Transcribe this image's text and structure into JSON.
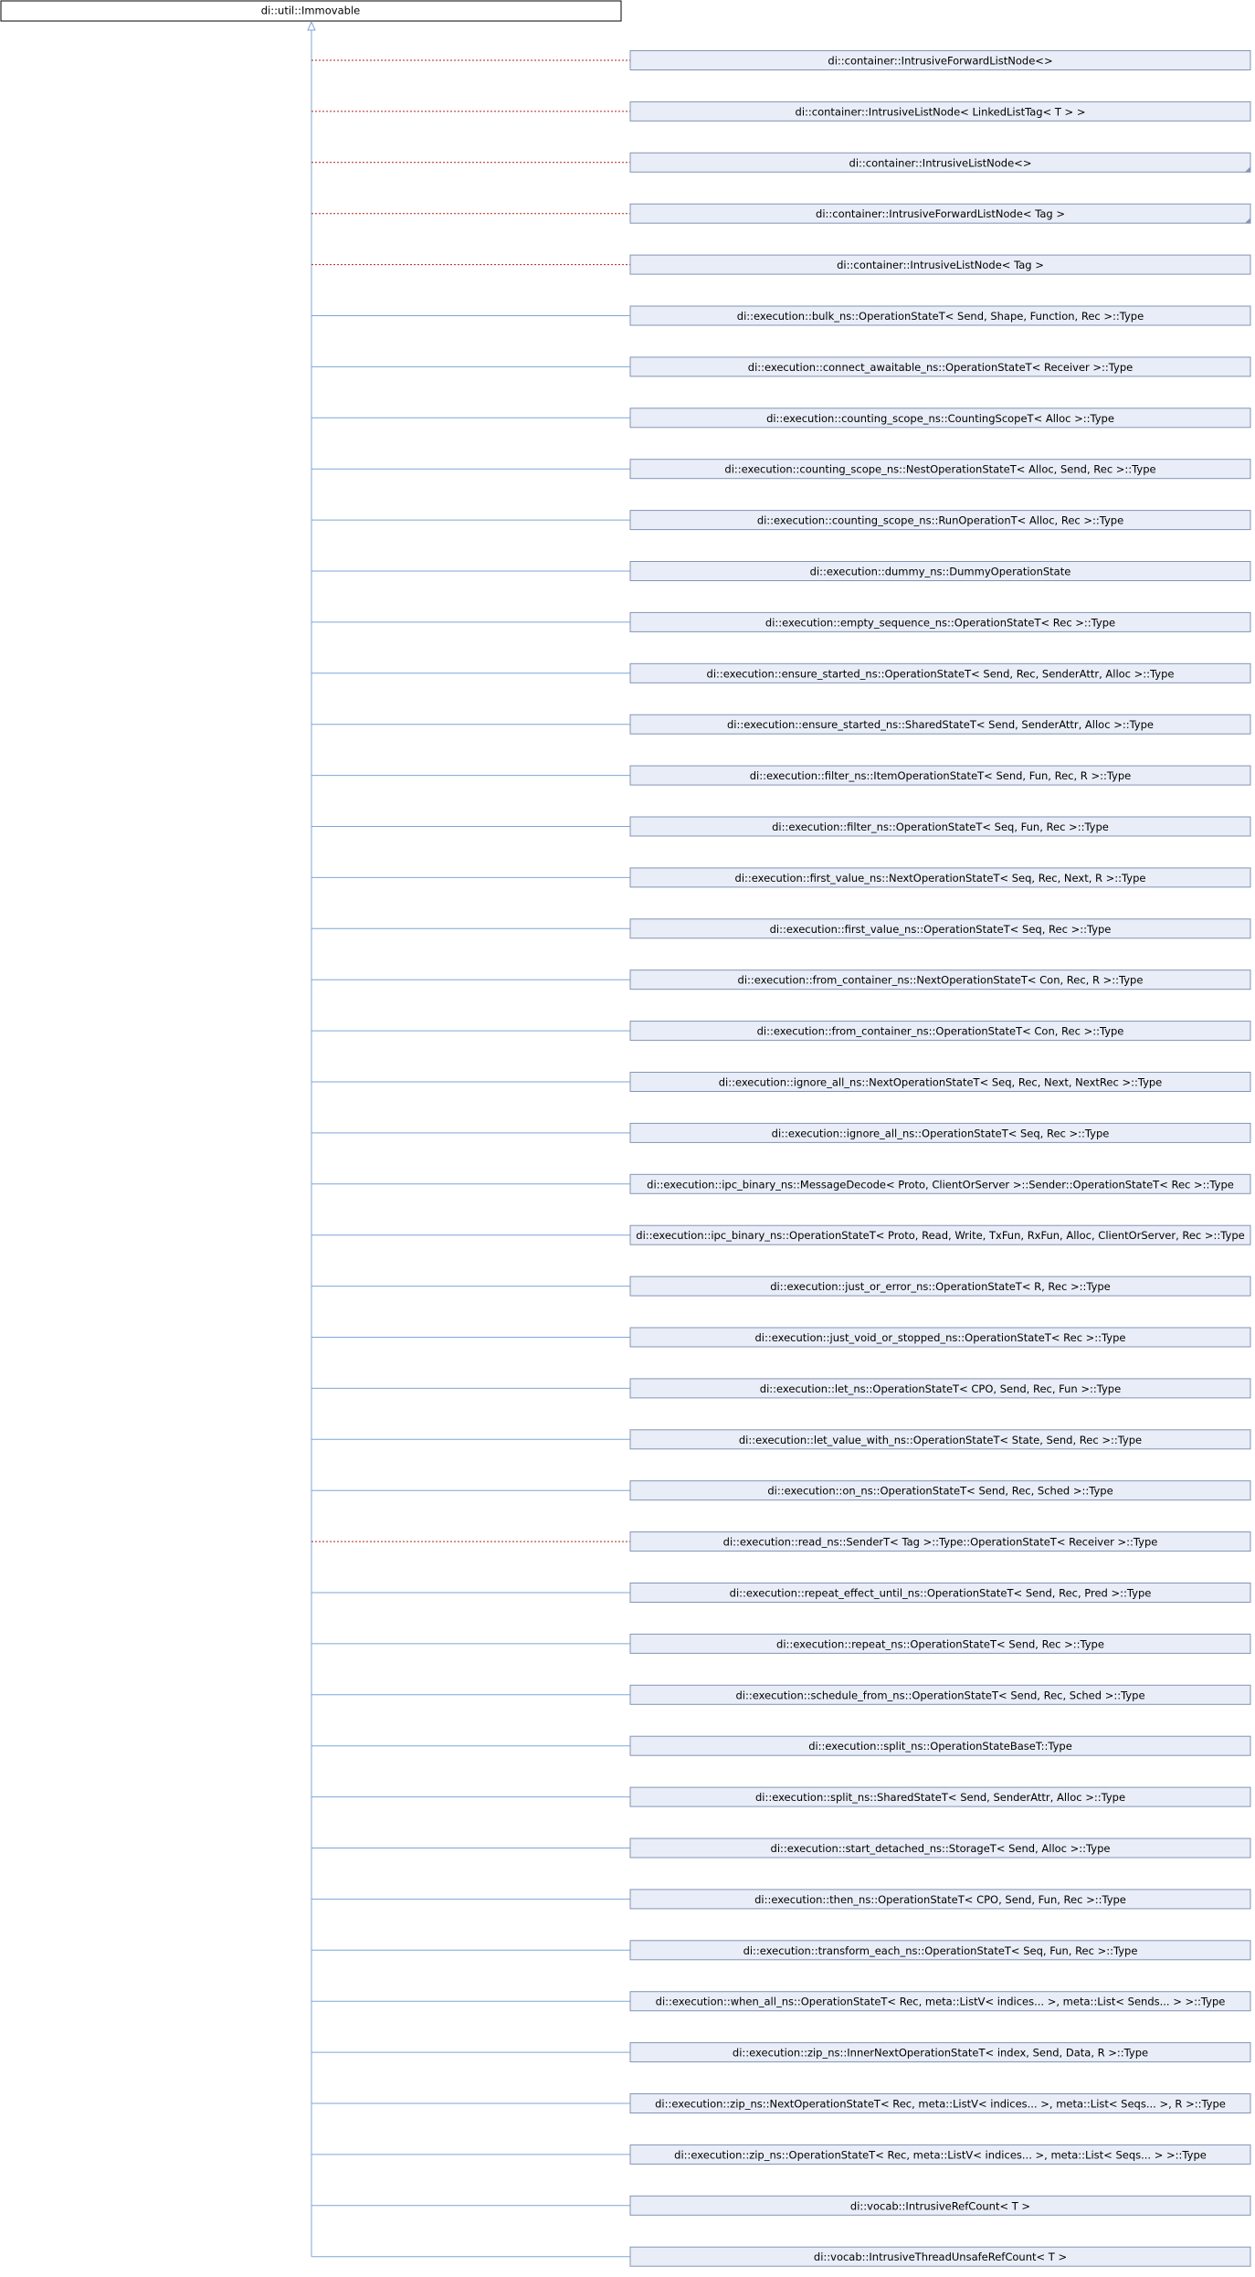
{
  "root": {
    "label": "di::util::Immovable"
  },
  "nodes": [
    {
      "label": "di::container::IntrusiveForwardListNode<>",
      "edge_style": "dotted"
    },
    {
      "label": "di::container::IntrusiveListNode< LinkedListTag< T > >",
      "edge_style": "dotted"
    },
    {
      "label": "di::container::IntrusiveListNode<>",
      "edge_style": "dotted",
      "truncated": true
    },
    {
      "label": "di::container::IntrusiveForwardListNode< Tag >",
      "edge_style": "dotted",
      "truncated": true
    },
    {
      "label": "di::container::IntrusiveListNode< Tag >",
      "edge_style": "dotted"
    },
    {
      "label": "di::execution::bulk_ns::OperationStateT< Send, Shape, Function, Rec >::Type",
      "edge_style": "solid"
    },
    {
      "label": "di::execution::connect_awaitable_ns::OperationStateT< Receiver >::Type",
      "edge_style": "solid"
    },
    {
      "label": "di::execution::counting_scope_ns::CountingScopeT< Alloc >::Type",
      "edge_style": "solid"
    },
    {
      "label": "di::execution::counting_scope_ns::NestOperationStateT< Alloc, Send, Rec >::Type",
      "edge_style": "solid"
    },
    {
      "label": "di::execution::counting_scope_ns::RunOperationT< Alloc, Rec >::Type",
      "edge_style": "solid"
    },
    {
      "label": "di::execution::dummy_ns::DummyOperationState",
      "edge_style": "solid"
    },
    {
      "label": "di::execution::empty_sequence_ns::OperationStateT< Rec >::Type",
      "edge_style": "solid"
    },
    {
      "label": "di::execution::ensure_started_ns::OperationStateT< Send, Rec, SenderAttr, Alloc >::Type",
      "edge_style": "solid"
    },
    {
      "label": "di::execution::ensure_started_ns::SharedStateT< Send, SenderAttr, Alloc >::Type",
      "edge_style": "solid"
    },
    {
      "label": "di::execution::filter_ns::ItemOperationStateT< Send, Fun, Rec, R >::Type",
      "edge_style": "solid"
    },
    {
      "label": "di::execution::filter_ns::OperationStateT< Seq, Fun, Rec >::Type",
      "edge_style": "solid"
    },
    {
      "label": "di::execution::first_value_ns::NextOperationStateT< Seq, Rec, Next, R >::Type",
      "edge_style": "solid"
    },
    {
      "label": "di::execution::first_value_ns::OperationStateT< Seq, Rec >::Type",
      "edge_style": "solid"
    },
    {
      "label": "di::execution::from_container_ns::NextOperationStateT< Con, Rec, R >::Type",
      "edge_style": "solid"
    },
    {
      "label": "di::execution::from_container_ns::OperationStateT< Con, Rec >::Type",
      "edge_style": "solid"
    },
    {
      "label": "di::execution::ignore_all_ns::NextOperationStateT< Seq, Rec, Next, NextRec >::Type",
      "edge_style": "solid"
    },
    {
      "label": "di::execution::ignore_all_ns::OperationStateT< Seq, Rec >::Type",
      "edge_style": "solid"
    },
    {
      "label": "di::execution::ipc_binary_ns::MessageDecode< Proto, ClientOrServer >::Sender::OperationStateT< Rec >::Type",
      "edge_style": "solid"
    },
    {
      "label": "di::execution::ipc_binary_ns::OperationStateT< Proto, Read, Write, TxFun, RxFun, Alloc, ClientOrServer, Rec >::Type",
      "edge_style": "solid"
    },
    {
      "label": "di::execution::just_or_error_ns::OperationStateT< R, Rec >::Type",
      "edge_style": "solid"
    },
    {
      "label": "di::execution::just_void_or_stopped_ns::OperationStateT< Rec >::Type",
      "edge_style": "solid"
    },
    {
      "label": "di::execution::let_ns::OperationStateT< CPO, Send, Rec, Fun >::Type",
      "edge_style": "solid"
    },
    {
      "label": "di::execution::let_value_with_ns::OperationStateT< State, Send, Rec >::Type",
      "edge_style": "solid"
    },
    {
      "label": "di::execution::on_ns::OperationStateT< Send, Rec, Sched >::Type",
      "edge_style": "solid"
    },
    {
      "label": "di::execution::read_ns::SenderT< Tag >::Type::OperationStateT< Receiver >::Type",
      "edge_style": "dotted"
    },
    {
      "label": "di::execution::repeat_effect_until_ns::OperationStateT< Send, Rec, Pred >::Type",
      "edge_style": "solid"
    },
    {
      "label": "di::execution::repeat_ns::OperationStateT< Send, Rec >::Type",
      "edge_style": "solid"
    },
    {
      "label": "di::execution::schedule_from_ns::OperationStateT< Send, Rec, Sched >::Type",
      "edge_style": "solid"
    },
    {
      "label": "di::execution::split_ns::OperationStateBaseT::Type",
      "edge_style": "solid"
    },
    {
      "label": "di::execution::split_ns::SharedStateT< Send, SenderAttr, Alloc >::Type",
      "edge_style": "solid"
    },
    {
      "label": "di::execution::start_detached_ns::StorageT< Send, Alloc >::Type",
      "edge_style": "solid"
    },
    {
      "label": "di::execution::then_ns::OperationStateT< CPO, Send, Fun, Rec >::Type",
      "edge_style": "solid"
    },
    {
      "label": "di::execution::transform_each_ns::OperationStateT< Seq, Fun, Rec >::Type",
      "edge_style": "solid"
    },
    {
      "label": "di::execution::when_all_ns::OperationStateT< Rec, meta::ListV< indices... >, meta::List< Sends... > >::Type",
      "edge_style": "solid"
    },
    {
      "label": "di::execution::zip_ns::InnerNextOperationStateT< index, Send, Data, R >::Type",
      "edge_style": "solid"
    },
    {
      "label": "di::execution::zip_ns::NextOperationStateT< Rec, meta::ListV< indices... >, meta::List< Seqs... >, R >::Type",
      "edge_style": "solid"
    },
    {
      "label": "di::execution::zip_ns::OperationStateT< Rec, meta::ListV< indices... >, meta::List< Seqs... > >::Type",
      "edge_style": "solid"
    },
    {
      "label": "di::vocab::IntrusiveRefCount< T >",
      "edge_style": "solid"
    },
    {
      "label": "di::vocab::IntrusiveThreadUnsafeRefCount< T >",
      "edge_style": "solid"
    }
  ]
}
